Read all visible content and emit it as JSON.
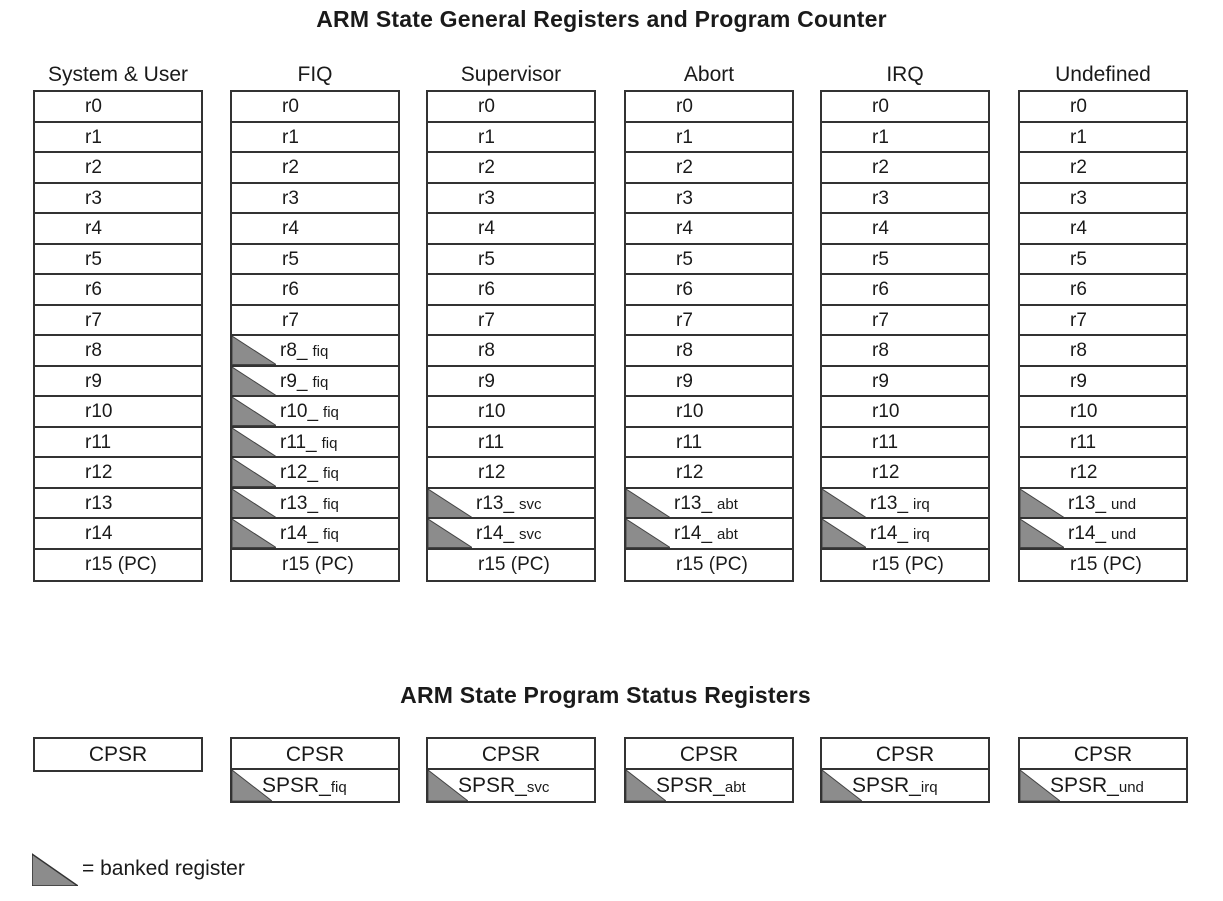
{
  "titles": {
    "general": "ARM State General Registers and Program Counter",
    "status": "ARM State Program Status Registers"
  },
  "modes": [
    {
      "name": "System & User",
      "registers": [
        {
          "base": "r0",
          "suffix": "",
          "banked": false
        },
        {
          "base": "r1",
          "suffix": "",
          "banked": false
        },
        {
          "base": "r2",
          "suffix": "",
          "banked": false
        },
        {
          "base": "r3",
          "suffix": "",
          "banked": false
        },
        {
          "base": "r4",
          "suffix": "",
          "banked": false
        },
        {
          "base": "r5",
          "suffix": "",
          "banked": false
        },
        {
          "base": "r6",
          "suffix": "",
          "banked": false
        },
        {
          "base": "r7",
          "suffix": "",
          "banked": false
        },
        {
          "base": "r8",
          "suffix": "",
          "banked": false
        },
        {
          "base": "r9",
          "suffix": "",
          "banked": false
        },
        {
          "base": "r10",
          "suffix": "",
          "banked": false
        },
        {
          "base": "r11",
          "suffix": "",
          "banked": false
        },
        {
          "base": "r12",
          "suffix": "",
          "banked": false
        },
        {
          "base": "r13",
          "suffix": "",
          "banked": false
        },
        {
          "base": "r14",
          "suffix": "",
          "banked": false
        },
        {
          "base": "r15 (PC)",
          "suffix": "",
          "banked": false
        }
      ],
      "cpsr": "CPSR",
      "spsr": null
    },
    {
      "name": "FIQ",
      "registers": [
        {
          "base": "r0",
          "suffix": "",
          "banked": false
        },
        {
          "base": "r1",
          "suffix": "",
          "banked": false
        },
        {
          "base": "r2",
          "suffix": "",
          "banked": false
        },
        {
          "base": "r3",
          "suffix": "",
          "banked": false
        },
        {
          "base": "r4",
          "suffix": "",
          "banked": false
        },
        {
          "base": "r5",
          "suffix": "",
          "banked": false
        },
        {
          "base": "r6",
          "suffix": "",
          "banked": false
        },
        {
          "base": "r7",
          "suffix": "",
          "banked": false
        },
        {
          "base": "r8_",
          "suffix": "fiq",
          "banked": true
        },
        {
          "base": "r9_",
          "suffix": "fiq",
          "banked": true
        },
        {
          "base": "r10_",
          "suffix": "fiq",
          "banked": true
        },
        {
          "base": "r11_",
          "suffix": "fiq",
          "banked": true
        },
        {
          "base": "r12_",
          "suffix": "fiq",
          "banked": true
        },
        {
          "base": "r13_",
          "suffix": "fiq",
          "banked": true
        },
        {
          "base": "r14_",
          "suffix": "fiq",
          "banked": true
        },
        {
          "base": "r15 (PC)",
          "suffix": "",
          "banked": false
        }
      ],
      "cpsr": "CPSR",
      "spsr": {
        "base": "SPSR_",
        "suffix": "fiq"
      }
    },
    {
      "name": "Supervisor",
      "registers": [
        {
          "base": "r0",
          "suffix": "",
          "banked": false
        },
        {
          "base": "r1",
          "suffix": "",
          "banked": false
        },
        {
          "base": "r2",
          "suffix": "",
          "banked": false
        },
        {
          "base": "r3",
          "suffix": "",
          "banked": false
        },
        {
          "base": "r4",
          "suffix": "",
          "banked": false
        },
        {
          "base": "r5",
          "suffix": "",
          "banked": false
        },
        {
          "base": "r6",
          "suffix": "",
          "banked": false
        },
        {
          "base": "r7",
          "suffix": "",
          "banked": false
        },
        {
          "base": "r8",
          "suffix": "",
          "banked": false
        },
        {
          "base": "r9",
          "suffix": "",
          "banked": false
        },
        {
          "base": "r10",
          "suffix": "",
          "banked": false
        },
        {
          "base": "r11",
          "suffix": "",
          "banked": false
        },
        {
          "base": "r12",
          "suffix": "",
          "banked": false
        },
        {
          "base": "r13_",
          "suffix": "svc",
          "banked": true
        },
        {
          "base": "r14_",
          "suffix": "svc",
          "banked": true
        },
        {
          "base": "r15 (PC)",
          "suffix": "",
          "banked": false
        }
      ],
      "cpsr": "CPSR",
      "spsr": {
        "base": "SPSR_",
        "suffix": "svc"
      }
    },
    {
      "name": "Abort",
      "registers": [
        {
          "base": "r0",
          "suffix": "",
          "banked": false
        },
        {
          "base": "r1",
          "suffix": "",
          "banked": false
        },
        {
          "base": "r2",
          "suffix": "",
          "banked": false
        },
        {
          "base": "r3",
          "suffix": "",
          "banked": false
        },
        {
          "base": "r4",
          "suffix": "",
          "banked": false
        },
        {
          "base": "r5",
          "suffix": "",
          "banked": false
        },
        {
          "base": "r6",
          "suffix": "",
          "banked": false
        },
        {
          "base": "r7",
          "suffix": "",
          "banked": false
        },
        {
          "base": "r8",
          "suffix": "",
          "banked": false
        },
        {
          "base": "r9",
          "suffix": "",
          "banked": false
        },
        {
          "base": "r10",
          "suffix": "",
          "banked": false
        },
        {
          "base": "r11",
          "suffix": "",
          "banked": false
        },
        {
          "base": "r12",
          "suffix": "",
          "banked": false
        },
        {
          "base": "r13_",
          "suffix": "abt",
          "banked": true
        },
        {
          "base": "r14_",
          "suffix": "abt",
          "banked": true
        },
        {
          "base": "r15 (PC)",
          "suffix": "",
          "banked": false
        }
      ],
      "cpsr": "CPSR",
      "spsr": {
        "base": "SPSR_",
        "suffix": "abt"
      }
    },
    {
      "name": "IRQ",
      "registers": [
        {
          "base": "r0",
          "suffix": "",
          "banked": false
        },
        {
          "base": "r1",
          "suffix": "",
          "banked": false
        },
        {
          "base": "r2",
          "suffix": "",
          "banked": false
        },
        {
          "base": "r3",
          "suffix": "",
          "banked": false
        },
        {
          "base": "r4",
          "suffix": "",
          "banked": false
        },
        {
          "base": "r5",
          "suffix": "",
          "banked": false
        },
        {
          "base": "r6",
          "suffix": "",
          "banked": false
        },
        {
          "base": "r7",
          "suffix": "",
          "banked": false
        },
        {
          "base": "r8",
          "suffix": "",
          "banked": false
        },
        {
          "base": "r9",
          "suffix": "",
          "banked": false
        },
        {
          "base": "r10",
          "suffix": "",
          "banked": false
        },
        {
          "base": "r11",
          "suffix": "",
          "banked": false
        },
        {
          "base": "r12",
          "suffix": "",
          "banked": false
        },
        {
          "base": "r13_",
          "suffix": "irq",
          "banked": true
        },
        {
          "base": "r14_",
          "suffix": "irq",
          "banked": true
        },
        {
          "base": "r15 (PC)",
          "suffix": "",
          "banked": false
        }
      ],
      "cpsr": "CPSR",
      "spsr": {
        "base": "SPSR_",
        "suffix": "irq"
      }
    },
    {
      "name": "Undefined",
      "registers": [
        {
          "base": "r0",
          "suffix": "",
          "banked": false
        },
        {
          "base": "r1",
          "suffix": "",
          "banked": false
        },
        {
          "base": "r2",
          "suffix": "",
          "banked": false
        },
        {
          "base": "r3",
          "suffix": "",
          "banked": false
        },
        {
          "base": "r4",
          "suffix": "",
          "banked": false
        },
        {
          "base": "r5",
          "suffix": "",
          "banked": false
        },
        {
          "base": "r6",
          "suffix": "",
          "banked": false
        },
        {
          "base": "r7",
          "suffix": "",
          "banked": false
        },
        {
          "base": "r8",
          "suffix": "",
          "banked": false
        },
        {
          "base": "r9",
          "suffix": "",
          "banked": false
        },
        {
          "base": "r10",
          "suffix": "",
          "banked": false
        },
        {
          "base": "r11",
          "suffix": "",
          "banked": false
        },
        {
          "base": "r12",
          "suffix": "",
          "banked": false
        },
        {
          "base": "r13_",
          "suffix": "und",
          "banked": true
        },
        {
          "base": "r14_",
          "suffix": "und",
          "banked": true
        },
        {
          "base": "r15 (PC)",
          "suffix": "",
          "banked": false
        }
      ],
      "cpsr": "CPSR",
      "spsr": {
        "base": "SPSR_",
        "suffix": "und"
      }
    }
  ],
  "legend": {
    "text": "= banked register",
    "icon": "banked-triangle-icon"
  },
  "colors": {
    "banked_fill": "#8c8c8c",
    "border": "#333333"
  }
}
